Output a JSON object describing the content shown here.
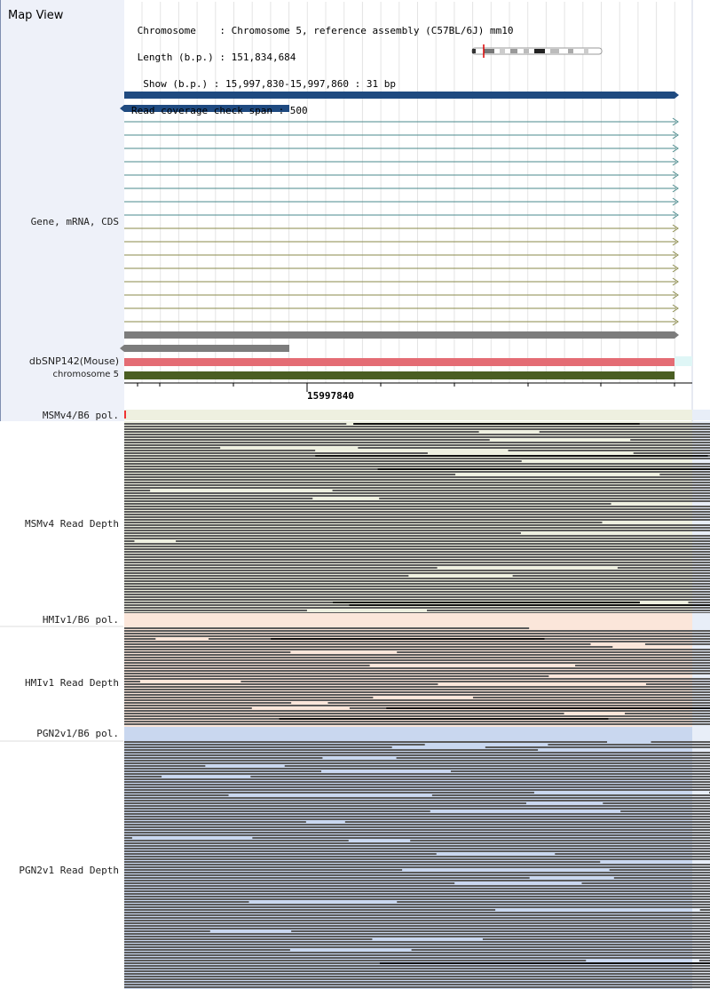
{
  "header": {
    "title": "Map View",
    "info_lines": [
      " Chromosome    : Chromosome 5, reference assembly (C57BL/6J) mm10",
      " Length (b.p.) : 151,834,684",
      "  Show (b.p.) : 15,997,830-15,997,860 : 31 bp",
      "Read coverage check span : 500"
    ]
  },
  "tracks": {
    "gene_label": "Gene, mRNA, CDS",
    "dbsnp_label": "dbSNP142(Mouse)",
    "chrom_label": "chromosome 5",
    "msm_pol_label": "MSMv4/B6 pol.",
    "msm_depth_label": "MSMv4 Read Depth",
    "hmi_pol_label": "HMIv1/B6 pol.",
    "hmi_depth_label": "HMIv1 Read Depth",
    "pgn_pol_label": "PGN2v1/B6 pol.",
    "pgn_depth_label": "PGN2v1 Read Depth"
  },
  "ruler": {
    "position_label": "15997840"
  },
  "colors": {
    "gene_main": "#1f4a80",
    "mrna_teal": "#4a8a8c",
    "mrna_olive": "#8a8a4a",
    "cds_gray": "#7c7c7c",
    "dbsnp": "#e46c74",
    "chromosome": "#4a5e22",
    "msm_bg": "#eef0e0",
    "hmi_bg": "#fbe6da",
    "pgn_bg": "#c9d7ef",
    "read": "#5a5a5a"
  },
  "icons": {
    "ideogram": "chromosome-ideogram-icon",
    "arrow": "strand-arrow-icon"
  }
}
